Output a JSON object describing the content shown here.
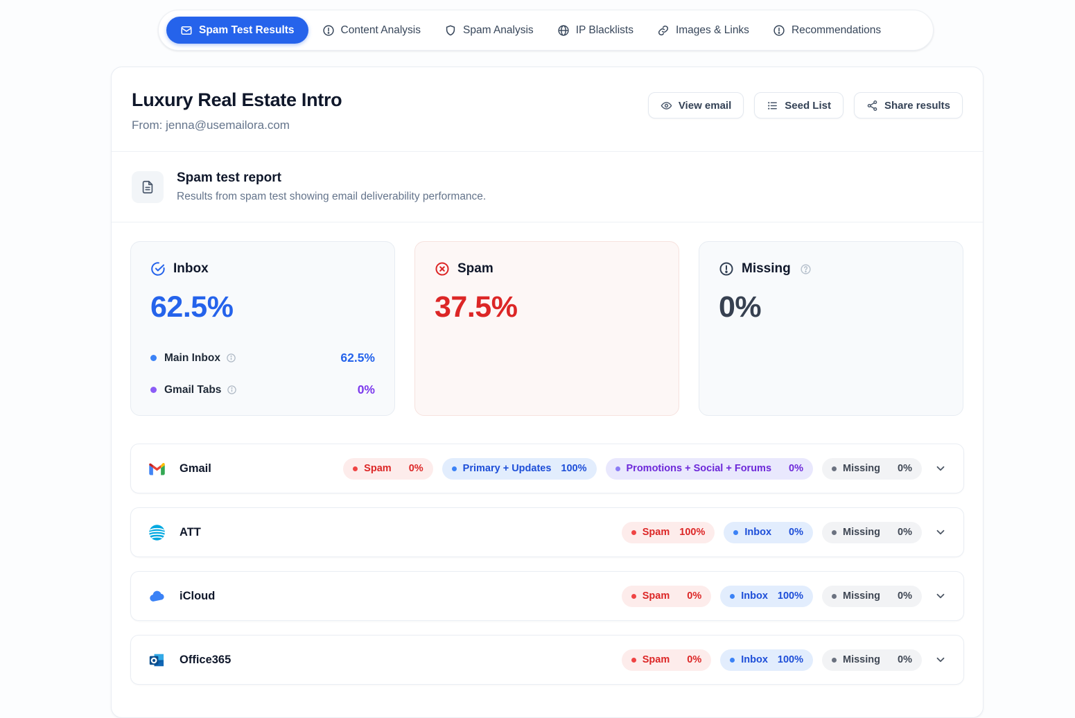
{
  "tabs": [
    {
      "label": "Spam Test Results",
      "icon": "envelope",
      "active": true
    },
    {
      "label": "Content Analysis",
      "icon": "alert-circle",
      "active": false
    },
    {
      "label": "Spam Analysis",
      "icon": "shield",
      "active": false
    },
    {
      "label": "IP Blacklists",
      "icon": "globe",
      "active": false
    },
    {
      "label": "Images & Links",
      "icon": "link",
      "active": false
    },
    {
      "label": "Recommendations",
      "icon": "alert-circle",
      "active": false
    }
  ],
  "header": {
    "title": "Luxury Real Estate Intro",
    "from": "From: jenna@usemailora.com",
    "buttons": {
      "view_email": "View email",
      "seed_list": "Seed List",
      "share_results": "Share results"
    }
  },
  "report": {
    "title": "Spam test report",
    "description": "Results from spam test showing email deliverability performance."
  },
  "stats": {
    "inbox": {
      "label": "Inbox",
      "value": "62.5%",
      "breakdown": [
        {
          "label": "Main Inbox",
          "value": "62.5%"
        },
        {
          "label": "Gmail Tabs",
          "value": "0%"
        }
      ]
    },
    "spam": {
      "label": "Spam",
      "value": "37.5%"
    },
    "missing": {
      "label": "Missing",
      "value": "0%"
    }
  },
  "providers": [
    {
      "name": "Gmail",
      "icon": "gmail",
      "badges": [
        {
          "label": "Spam",
          "value": "0%",
          "type": "spam"
        },
        {
          "label": "Primary + Updates",
          "value": "100%",
          "type": "inbox"
        },
        {
          "label": "Promotions + Social + Forums",
          "value": "0%",
          "type": "tabs"
        },
        {
          "label": "Missing",
          "value": "0%",
          "type": "missing"
        }
      ]
    },
    {
      "name": "ATT",
      "icon": "att",
      "badges": [
        {
          "label": "Spam",
          "value": "100%",
          "type": "spam"
        },
        {
          "label": "Inbox",
          "value": "0%",
          "type": "inbox"
        },
        {
          "label": "Missing",
          "value": "0%",
          "type": "missing"
        }
      ]
    },
    {
      "name": "iCloud",
      "icon": "icloud",
      "badges": [
        {
          "label": "Spam",
          "value": "0%",
          "type": "spam"
        },
        {
          "label": "Inbox",
          "value": "100%",
          "type": "inbox"
        },
        {
          "label": "Missing",
          "value": "0%",
          "type": "missing"
        }
      ]
    },
    {
      "name": "Office365",
      "icon": "outlook",
      "badges": [
        {
          "label": "Spam",
          "value": "0%",
          "type": "spam"
        },
        {
          "label": "Inbox",
          "value": "100%",
          "type": "inbox"
        },
        {
          "label": "Missing",
          "value": "0%",
          "type": "missing"
        }
      ]
    }
  ],
  "colors": {
    "accent_blue": "#2563eb",
    "status_red": "#dc2626",
    "tabs_purple": "#7c3aed",
    "neutral_slate": "#334155"
  }
}
